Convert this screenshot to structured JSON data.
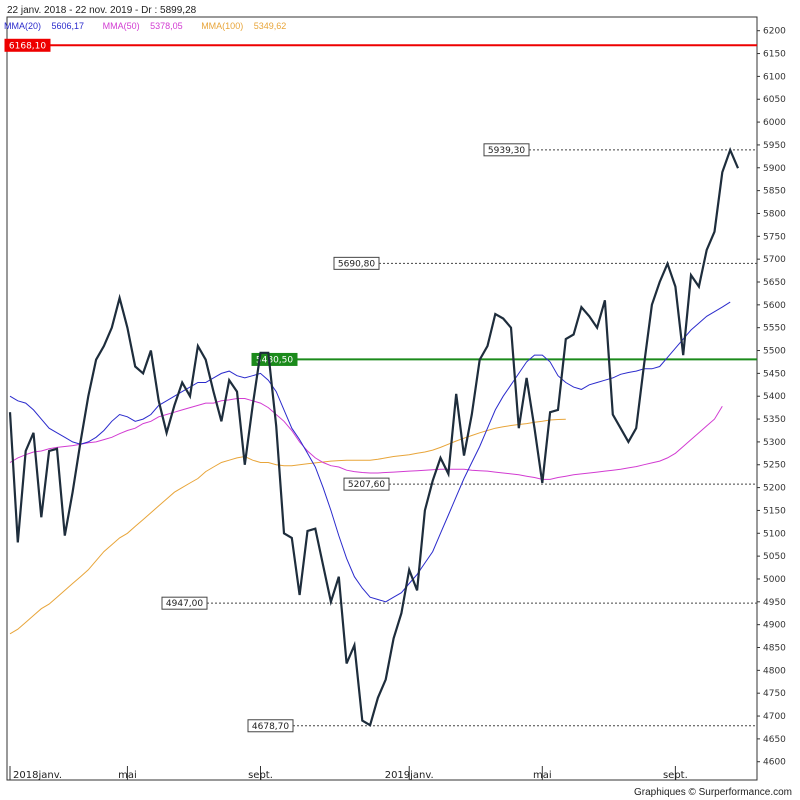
{
  "header": {
    "title": "22 janv. 2018 - 22 nov. 2019 - Dr : 5899,28",
    "credit": "Graphiques © Surperformance.com",
    "legend": [
      {
        "label": "MMA(20)",
        "value": "5606,17",
        "color": "#2b2bcc"
      },
      {
        "label": "MMA(50)",
        "value": "5378,05",
        "color": "#d23cd2"
      },
      {
        "label": "MMA(100)",
        "value": "5349,62",
        "color": "#e8a53a"
      }
    ]
  },
  "chart_data": {
    "type": "line",
    "ylim": [
      4560,
      6230
    ],
    "yticks": [
      4600,
      4650,
      4700,
      4750,
      4800,
      4850,
      4900,
      4950,
      5000,
      5050,
      5100,
      5150,
      5200,
      5250,
      5300,
      5350,
      5400,
      5450,
      5500,
      5550,
      5600,
      5650,
      5700,
      5750,
      5800,
      5850,
      5900,
      5950,
      6000,
      6050,
      6100,
      6150,
      6200
    ],
    "month_labels": [
      {
        "t": 0,
        "label": "2018janv."
      },
      {
        "t": 15,
        "label": "mai"
      },
      {
        "t": 32,
        "label": "sept."
      },
      {
        "t": 51,
        "label": "2019janv."
      },
      {
        "t": 68,
        "label": "mai"
      },
      {
        "t": 85,
        "label": "sept."
      }
    ],
    "series": [
      {
        "color": "#1e2d3c",
        "values": [
          5365,
          5080,
          5280,
          5320,
          5135,
          5280,
          5285,
          5095,
          5190,
          5300,
          5400,
          5480,
          5510,
          5550,
          5615,
          5550,
          5465,
          5450,
          5500,
          5390,
          5320,
          5380,
          5430,
          5400,
          5510,
          5480,
          5410,
          5345,
          5435,
          5410,
          5250,
          5380,
          5495,
          5495,
          5335,
          5100,
          5090,
          4965,
          5105,
          5110,
          5030,
          4950,
          5005,
          4815,
          4855,
          4690,
          4680,
          4740,
          4780,
          4870,
          4925,
          5020,
          4975,
          5150,
          5215,
          5265,
          5230,
          5405,
          5270,
          5360,
          5480,
          5510,
          5580,
          5570,
          5550,
          5330,
          5440,
          5330,
          5210,
          5365,
          5370,
          5525,
          5535,
          5595,
          5575,
          5550,
          5610,
          5360,
          5330,
          5300,
          5330,
          5470,
          5600,
          5650,
          5690,
          5640,
          5490,
          5665,
          5640,
          5720,
          5760,
          5890,
          5939,
          5899
        ]
      },
      {
        "color": "#2b2bcc",
        "values": [
          5400,
          5390,
          5385,
          5370,
          5350,
          5330,
          5320,
          5310,
          5300,
          5295,
          5300,
          5310,
          5325,
          5345,
          5360,
          5355,
          5345,
          5350,
          5360,
          5380,
          5390,
          5400,
          5410,
          5420,
          5430,
          5430,
          5440,
          5450,
          5455,
          5445,
          5440,
          5445,
          5450,
          5435,
          5410,
          5370,
          5330,
          5305,
          5275,
          5245,
          5200,
          5150,
          5095,
          5045,
          5005,
          4980,
          4960,
          4955,
          4950,
          4960,
          4970,
          4990,
          5010,
          5035,
          5060,
          5100,
          5140,
          5180,
          5220,
          5255,
          5290,
          5330,
          5370,
          5400,
          5425,
          5450,
          5475,
          5490,
          5490,
          5475,
          5445,
          5430,
          5420,
          5415,
          5425,
          5430,
          5435,
          5440,
          5448,
          5452,
          5455,
          5460,
          5460,
          5465,
          5485,
          5505,
          5525,
          5545,
          5560,
          5575,
          5585,
          5595,
          5606
        ]
      },
      {
        "color": "#d23cd2",
        "values": [
          5255,
          5265,
          5272,
          5278,
          5280,
          5285,
          5288,
          5290,
          5292,
          5295,
          5298,
          5300,
          5305,
          5310,
          5318,
          5325,
          5330,
          5340,
          5345,
          5355,
          5360,
          5365,
          5370,
          5375,
          5380,
          5385,
          5385,
          5390,
          5392,
          5395,
          5395,
          5390,
          5385,
          5375,
          5360,
          5345,
          5325,
          5300,
          5280,
          5265,
          5255,
          5248,
          5245,
          5238,
          5235,
          5233,
          5232,
          5232,
          5233,
          5234,
          5235,
          5236,
          5237,
          5238,
          5239,
          5240,
          5240,
          5240,
          5240,
          5238,
          5237,
          5236,
          5234,
          5232,
          5230,
          5228,
          5225,
          5222,
          5218,
          5218,
          5222,
          5225,
          5228,
          5230,
          5232,
          5234,
          5236,
          5238,
          5240,
          5243,
          5246,
          5250,
          5254,
          5258,
          5265,
          5275,
          5290,
          5305,
          5320,
          5335,
          5350,
          5378
        ]
      },
      {
        "color": "#e8a53a",
        "values": [
          4880,
          4890,
          4905,
          4920,
          4935,
          4945,
          4960,
          4975,
          4990,
          5005,
          5020,
          5040,
          5060,
          5075,
          5090,
          5100,
          5115,
          5130,
          5145,
          5160,
          5175,
          5190,
          5200,
          5210,
          5220,
          5235,
          5245,
          5255,
          5260,
          5265,
          5268,
          5260,
          5255,
          5255,
          5250,
          5248,
          5248,
          5250,
          5252,
          5254,
          5256,
          5258,
          5259,
          5260,
          5260,
          5260,
          5260,
          5262,
          5265,
          5268,
          5270,
          5272,
          5275,
          5278,
          5282,
          5288,
          5295,
          5302,
          5308,
          5314,
          5320,
          5325,
          5330,
          5333,
          5336,
          5338,
          5340,
          5343,
          5345,
          5348,
          5349,
          5349.62
        ]
      }
    ],
    "hlines": [
      {
        "value": 6168.1,
        "label": "6168,10",
        "color": "#ee0000",
        "style": "solid"
      },
      {
        "value": 5480.5,
        "label": "5480,50",
        "color": "#1b8a1b",
        "style": "solid"
      },
      {
        "value": 5939.3,
        "label": "5939,30",
        "color": "#444444",
        "style": "dashed"
      },
      {
        "value": 5690.8,
        "label": "5690,80",
        "color": "#444444",
        "style": "dashed"
      },
      {
        "value": 5207.6,
        "label": "5207,60",
        "color": "#444444",
        "style": "dashed"
      },
      {
        "value": 4947.0,
        "label": "4947,00",
        "color": "#444444",
        "style": "dashed"
      },
      {
        "value": 4678.7,
        "label": "4678,70",
        "color": "#444444",
        "style": "dashed"
      }
    ]
  }
}
